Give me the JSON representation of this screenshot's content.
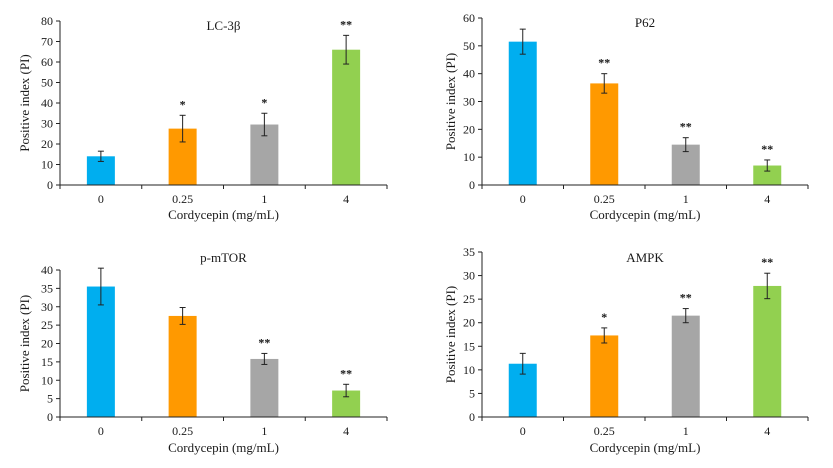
{
  "chart_data": [
    {
      "type": "bar",
      "title": "LC-3β",
      "xlabel": "Cordycepin (mg/mL)",
      "ylabel": "Positive index (PI)",
      "categories": [
        "0",
        "0.25",
        "1",
        "4"
      ],
      "values": [
        14,
        27.5,
        29.5,
        66
      ],
      "errors": [
        2.5,
        6.5,
        5.5,
        7
      ],
      "significance": [
        "",
        "*",
        "*",
        "**"
      ],
      "colors": [
        "#00AEEF",
        "#FF9900",
        "#A6A6A6",
        "#92D050"
      ],
      "ylim": [
        0,
        80
      ],
      "yticks": [
        0,
        10,
        20,
        30,
        40,
        50,
        60,
        70,
        80
      ],
      "grid": false,
      "legend": "none"
    },
    {
      "type": "bar",
      "title": "P62",
      "xlabel": "Cordycepin (mg/mL)",
      "ylabel": "Positive index (PI)",
      "categories": [
        "0",
        "0.25",
        "1",
        "4"
      ],
      "values": [
        51.5,
        36.5,
        14.5,
        7
      ],
      "errors": [
        4.5,
        3.5,
        2.5,
        2
      ],
      "significance": [
        "",
        "**",
        "**",
        "**"
      ],
      "colors": [
        "#00AEEF",
        "#FF9900",
        "#A6A6A6",
        "#92D050"
      ],
      "ylim": [
        0,
        60
      ],
      "yticks": [
        0,
        10,
        20,
        30,
        40,
        50,
        60
      ],
      "grid": false,
      "legend": "none"
    },
    {
      "type": "bar",
      "title": "p-mTOR",
      "xlabel": "Cordycepin (mg/mL)",
      "ylabel": "Positive index (PI)",
      "categories": [
        "0",
        "0.25",
        "1",
        "4"
      ],
      "values": [
        35.5,
        27.5,
        15.8,
        7.2
      ],
      "errors": [
        5,
        2.3,
        1.5,
        1.7
      ],
      "significance": [
        "",
        "",
        "**",
        "**"
      ],
      "colors": [
        "#00AEEF",
        "#FF9900",
        "#A6A6A6",
        "#92D050"
      ],
      "ylim": [
        0,
        40
      ],
      "yticks": [
        0,
        5,
        10,
        15,
        20,
        25,
        30,
        35,
        40
      ],
      "grid": false,
      "legend": "none"
    },
    {
      "type": "bar",
      "title": "AMPK",
      "xlabel": "Cordycepin (mg/mL)",
      "ylabel": "Positive index (PI)",
      "categories": [
        "0",
        "0.25",
        "1",
        "4"
      ],
      "values": [
        11.3,
        17.3,
        21.5,
        27.8
      ],
      "errors": [
        2.2,
        1.6,
        1.5,
        2.7
      ],
      "significance": [
        "",
        "*",
        "**",
        "**"
      ],
      "colors": [
        "#00AEEF",
        "#FF9900",
        "#A6A6A6",
        "#92D050"
      ],
      "ylim": [
        0,
        35
      ],
      "yticks": [
        0,
        5,
        10,
        15,
        20,
        25,
        30,
        35
      ],
      "grid": false,
      "legend": "none"
    }
  ]
}
